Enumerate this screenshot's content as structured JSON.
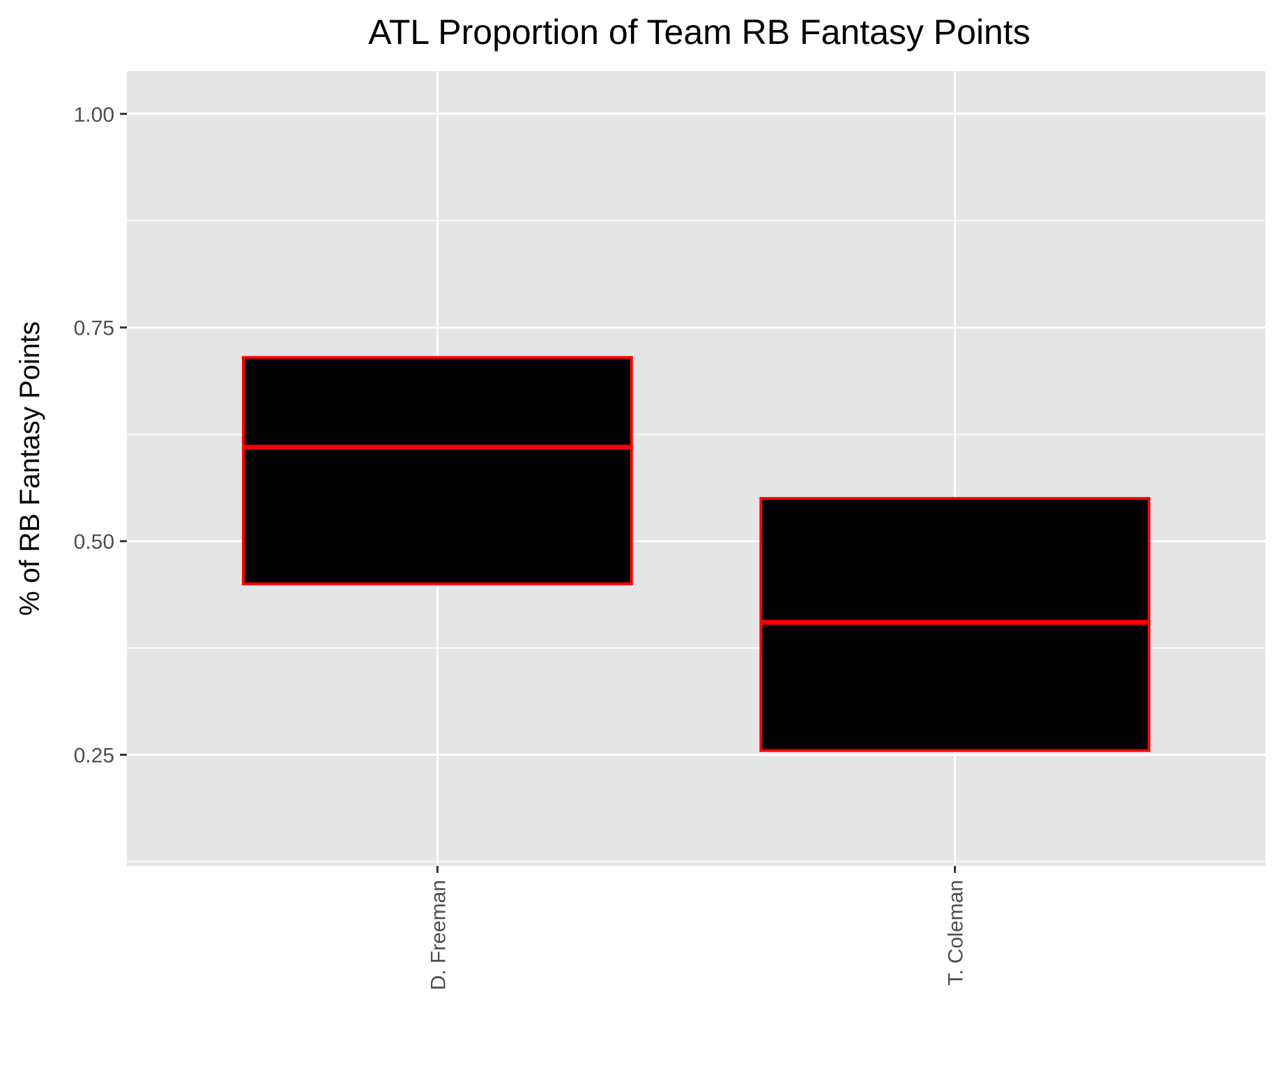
{
  "chart_data": {
    "type": "boxplot",
    "title": "ATL Proportion of Team RB Fantasy Points",
    "xlabel": "",
    "ylabel": "% of RB Fantasy Points",
    "ylim": [
      0.12,
      1.05
    ],
    "yticks": [
      0.25,
      0.5,
      0.75,
      1.0
    ],
    "ytick_labels": [
      "0.25",
      "0.50",
      "0.75",
      "1.00"
    ],
    "categories": [
      "D. Freeman",
      "T. Coleman"
    ],
    "boxes": [
      {
        "category": "D. Freeman",
        "q1": 0.45,
        "median": 0.61,
        "q3": 0.715
      },
      {
        "category": "T. Coleman",
        "q1": 0.255,
        "median": 0.405,
        "q3": 0.55
      }
    ],
    "grid": true,
    "legend": "none",
    "colors": {
      "panel_background": "#e5e5e5",
      "grid": "#ffffff",
      "box_fill": "#000000",
      "box_outline": "#ff0000",
      "median_line": "#ff0000",
      "axis_ticks": "#333333"
    }
  }
}
